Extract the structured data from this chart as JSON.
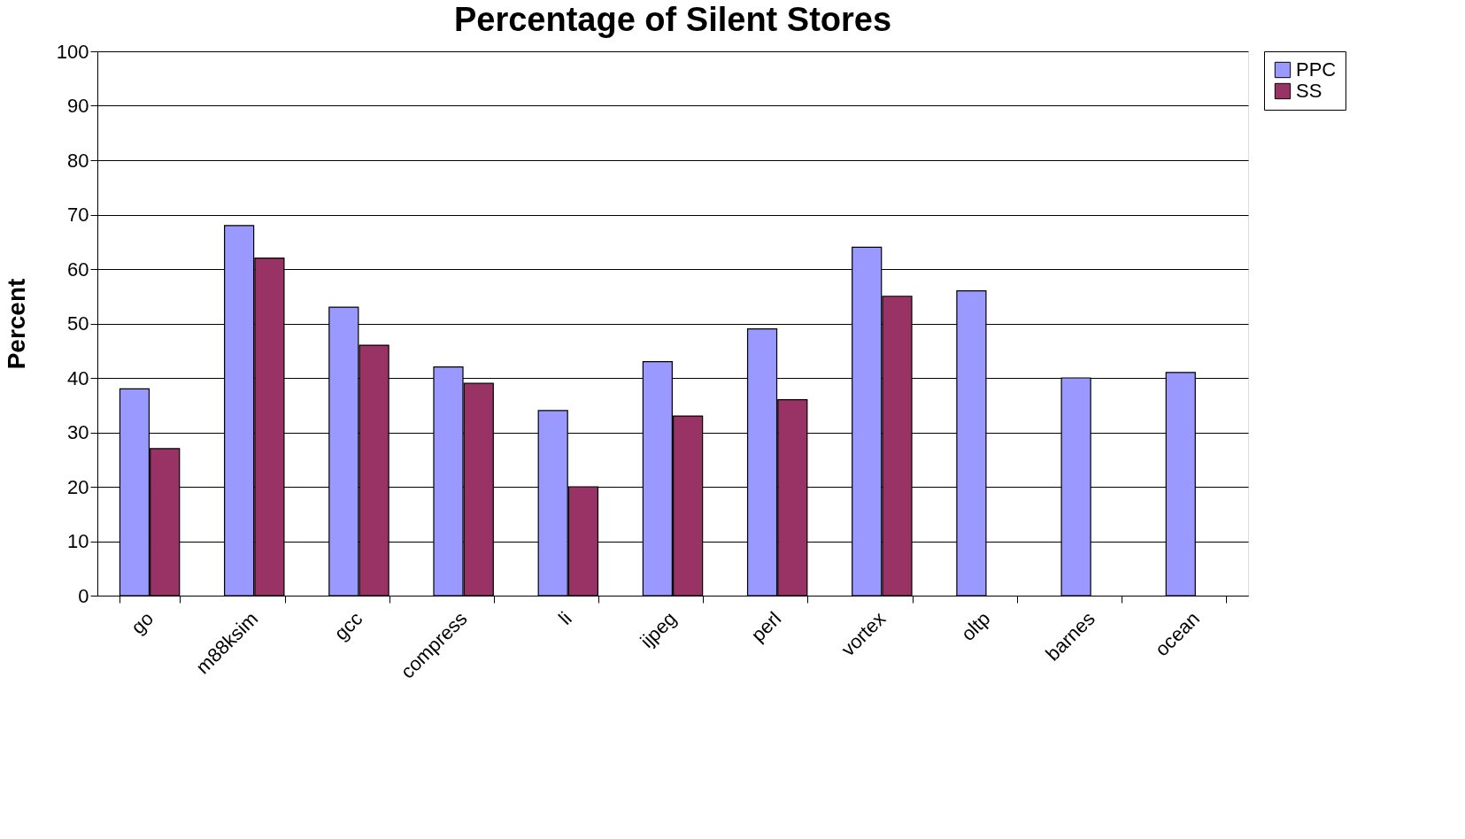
{
  "chart_data": {
    "type": "bar",
    "title": "Percentage of Silent Stores",
    "ylabel": "Percent",
    "categories": [
      "go",
      "m88ksim",
      "gcc",
      "compress",
      "li",
      "ijpeg",
      "perl",
      "vortex",
      "oltp",
      "barnes",
      "ocean"
    ],
    "series": [
      {
        "name": "PPC",
        "color": "#9999ff",
        "values": [
          38,
          68,
          53,
          42,
          34,
          43,
          49,
          64,
          56,
          40,
          41
        ]
      },
      {
        "name": "SS",
        "color": "#993366",
        "values": [
          27,
          62,
          46,
          39,
          20,
          33,
          36,
          55,
          null,
          null,
          null
        ]
      }
    ],
    "ylim": [
      0,
      100
    ],
    "yticks": [
      0,
      10,
      20,
      30,
      40,
      50,
      60,
      70,
      80,
      90,
      100
    ],
    "grid": "y",
    "legend": "right"
  }
}
